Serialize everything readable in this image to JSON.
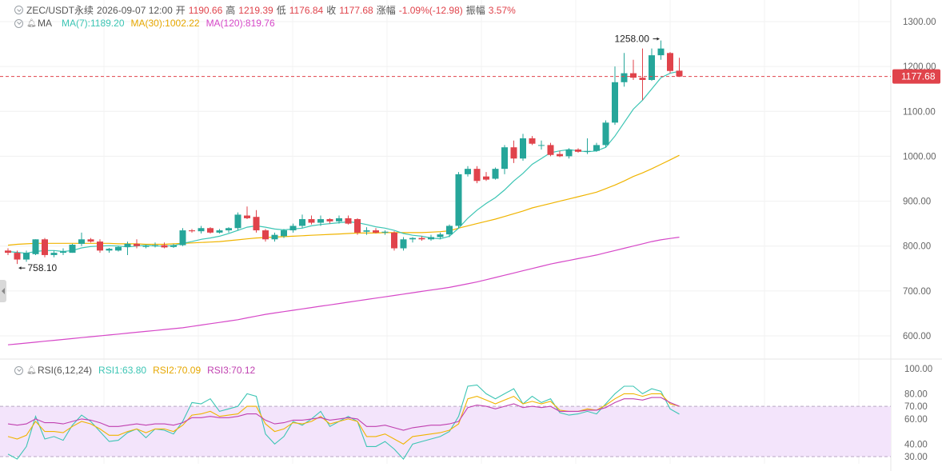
{
  "header": {
    "symbol": "ZEC/USDT永续",
    "datetime": "2026-09-07 12:00",
    "open_label": "开",
    "open": "1190.66",
    "high_label": "高",
    "high": "1219.39",
    "low_label": "低",
    "low": "1176.84",
    "close_label": "收",
    "close": "1177.68",
    "change_label": "涨幅",
    "change": "-1.09%(-12.98)",
    "amp_label": "振幅",
    "amp": "3.57%"
  },
  "ma_legend": {
    "title": "MA",
    "ma7": "MA(7):1189.20",
    "ma30": "MA(30):1002.22",
    "ma120": "MA(120):819.76"
  },
  "rsi_legend": {
    "title": "RSI(6,12,24)",
    "rsi1": "RSI1:63.80",
    "rsi2": "RSI2:70.09",
    "rsi3": "RSI3:70.12"
  },
  "price_axis": {
    "ticks": [
      "1300.00",
      "1200.00",
      "1100.00",
      "1000.00",
      "900.00",
      "800.00",
      "700.00",
      "600.00"
    ],
    "current_price": "1177.68",
    "high_marker": "1258.00",
    "low_marker": "758.10"
  },
  "rsi_axis": {
    "ticks": [
      "100.00",
      "80.00",
      "70.00",
      "60.00",
      "40.00",
      "30.00"
    ]
  },
  "colors": {
    "up": "#26a69a",
    "down": "#e0434b",
    "ma7": "#3cc5b4",
    "ma30": "#f0b400",
    "ma120": "#d648c8",
    "rsi1": "#3cc5b4",
    "rsi2": "#f0b400",
    "rsi3": "#c040b0",
    "rsi_band": "#f3e4fb"
  },
  "chart_data": [
    {
      "type": "candlestick",
      "price_ylim": [
        560,
        1320
      ],
      "candles": [
        {
          "o": 790,
          "h": 795,
          "l": 780,
          "c": 785
        },
        {
          "o": 785,
          "h": 790,
          "l": 760,
          "c": 770
        },
        {
          "o": 770,
          "h": 790,
          "l": 765,
          "c": 785
        },
        {
          "o": 782,
          "h": 815,
          "l": 780,
          "c": 815
        },
        {
          "o": 815,
          "h": 818,
          "l": 775,
          "c": 780
        },
        {
          "o": 780,
          "h": 790,
          "l": 775,
          "c": 785
        },
        {
          "o": 785,
          "h": 795,
          "l": 780,
          "c": 788
        },
        {
          "o": 785,
          "h": 805,
          "l": 785,
          "c": 803
        },
        {
          "o": 805,
          "h": 830,
          "l": 800,
          "c": 815
        },
        {
          "o": 815,
          "h": 818,
          "l": 808,
          "c": 810
        },
        {
          "o": 810,
          "h": 815,
          "l": 785,
          "c": 790
        },
        {
          "o": 790,
          "h": 796,
          "l": 785,
          "c": 794
        },
        {
          "o": 790,
          "h": 800,
          "l": 788,
          "c": 798
        },
        {
          "o": 798,
          "h": 810,
          "l": 780,
          "c": 805
        },
        {
          "o": 805,
          "h": 815,
          "l": 795,
          "c": 800
        },
        {
          "o": 798,
          "h": 803,
          "l": 795,
          "c": 800
        },
        {
          "o": 800,
          "h": 808,
          "l": 797,
          "c": 802
        },
        {
          "o": 802,
          "h": 808,
          "l": 795,
          "c": 797
        },
        {
          "o": 798,
          "h": 805,
          "l": 796,
          "c": 802
        },
        {
          "o": 802,
          "h": 840,
          "l": 800,
          "c": 835
        },
        {
          "o": 835,
          "h": 838,
          "l": 830,
          "c": 833
        },
        {
          "o": 833,
          "h": 845,
          "l": 828,
          "c": 840
        },
        {
          "o": 840,
          "h": 842,
          "l": 828,
          "c": 830
        },
        {
          "o": 830,
          "h": 838,
          "l": 828,
          "c": 835
        },
        {
          "o": 835,
          "h": 842,
          "l": 830,
          "c": 840
        },
        {
          "o": 840,
          "h": 875,
          "l": 835,
          "c": 870
        },
        {
          "o": 868,
          "h": 888,
          "l": 860,
          "c": 862
        },
        {
          "o": 865,
          "h": 880,
          "l": 830,
          "c": 835
        },
        {
          "o": 835,
          "h": 838,
          "l": 810,
          "c": 815
        },
        {
          "o": 815,
          "h": 830,
          "l": 810,
          "c": 825
        },
        {
          "o": 822,
          "h": 838,
          "l": 818,
          "c": 835
        },
        {
          "o": 835,
          "h": 850,
          "l": 830,
          "c": 845
        },
        {
          "o": 845,
          "h": 870,
          "l": 840,
          "c": 860
        },
        {
          "o": 860,
          "h": 868,
          "l": 848,
          "c": 852
        },
        {
          "o": 852,
          "h": 868,
          "l": 845,
          "c": 860
        },
        {
          "o": 860,
          "h": 862,
          "l": 850,
          "c": 855
        },
        {
          "o": 855,
          "h": 868,
          "l": 850,
          "c": 862
        },
        {
          "o": 862,
          "h": 868,
          "l": 848,
          "c": 850
        },
        {
          "o": 860,
          "h": 862,
          "l": 825,
          "c": 830
        },
        {
          "o": 832,
          "h": 842,
          "l": 825,
          "c": 835
        },
        {
          "o": 835,
          "h": 840,
          "l": 828,
          "c": 830
        },
        {
          "o": 830,
          "h": 835,
          "l": 825,
          "c": 832
        },
        {
          "o": 830,
          "h": 833,
          "l": 790,
          "c": 795
        },
        {
          "o": 795,
          "h": 820,
          "l": 790,
          "c": 815
        },
        {
          "o": 815,
          "h": 820,
          "l": 808,
          "c": 818
        },
        {
          "o": 818,
          "h": 822,
          "l": 812,
          "c": 815
        },
        {
          "o": 815,
          "h": 825,
          "l": 812,
          "c": 820
        },
        {
          "o": 820,
          "h": 830,
          "l": 815,
          "c": 826
        },
        {
          "o": 826,
          "h": 848,
          "l": 820,
          "c": 845
        },
        {
          "o": 845,
          "h": 965,
          "l": 840,
          "c": 960
        },
        {
          "o": 960,
          "h": 978,
          "l": 955,
          "c": 972
        },
        {
          "o": 972,
          "h": 978,
          "l": 940,
          "c": 945
        },
        {
          "o": 955,
          "h": 965,
          "l": 945,
          "c": 948
        },
        {
          "o": 950,
          "h": 975,
          "l": 948,
          "c": 972
        },
        {
          "o": 972,
          "h": 1025,
          "l": 960,
          "c": 1020
        },
        {
          "o": 1020,
          "h": 1035,
          "l": 985,
          "c": 995
        },
        {
          "o": 995,
          "h": 1050,
          "l": 990,
          "c": 1040
        },
        {
          "o": 1040,
          "h": 1045,
          "l": 1025,
          "c": 1028
        },
        {
          "o": 1025,
          "h": 1035,
          "l": 1015,
          "c": 1025
        },
        {
          "o": 1025,
          "h": 1030,
          "l": 1000,
          "c": 1003
        },
        {
          "o": 1005,
          "h": 1012,
          "l": 998,
          "c": 1000
        },
        {
          "o": 1000,
          "h": 1018,
          "l": 995,
          "c": 1015
        },
        {
          "o": 1015,
          "h": 1018,
          "l": 1008,
          "c": 1010
        },
        {
          "o": 1010,
          "h": 1040,
          "l": 1005,
          "c": 1012
        },
        {
          "o": 1012,
          "h": 1030,
          "l": 1010,
          "c": 1025
        },
        {
          "o": 1025,
          "h": 1080,
          "l": 1020,
          "c": 1075
        },
        {
          "o": 1075,
          "h": 1200,
          "l": 1070,
          "c": 1165
        },
        {
          "o": 1165,
          "h": 1230,
          "l": 1155,
          "c": 1185
        },
        {
          "o": 1185,
          "h": 1215,
          "l": 1170,
          "c": 1175
        },
        {
          "o": 1175,
          "h": 1240,
          "l": 1125,
          "c": 1170
        },
        {
          "o": 1170,
          "h": 1240,
          "l": 1168,
          "c": 1225
        },
        {
          "o": 1225,
          "h": 1258,
          "l": 1215,
          "c": 1240
        },
        {
          "o": 1230,
          "h": 1232,
          "l": 1185,
          "c": 1190
        },
        {
          "o": 1190.66,
          "h": 1219.39,
          "l": 1176.84,
          "c": 1177.68
        }
      ],
      "ma7": [
        788,
        786,
        784,
        788,
        790,
        790,
        788,
        790,
        796,
        799,
        800,
        801,
        800,
        798,
        800,
        802,
        800,
        800,
        801,
        806,
        810,
        815,
        818,
        822,
        828,
        835,
        842,
        845,
        842,
        838,
        836,
        838,
        840,
        845,
        848,
        850,
        852,
        854,
        852,
        848,
        843,
        840,
        835,
        828,
        824,
        822,
        818,
        816,
        822,
        840,
        862,
        880,
        895,
        908,
        925,
        945,
        962,
        982,
        995,
        1008,
        1012,
        1015,
        1012,
        1010,
        1012,
        1020,
        1045,
        1075,
        1105,
        1125,
        1150,
        1175,
        1185,
        1189.2
      ],
      "ma30": [
        802,
        804,
        805,
        806,
        806,
        806,
        806,
        806,
        806,
        806,
        806,
        806,
        805,
        805,
        805,
        804,
        804,
        804,
        805,
        806,
        807,
        808,
        809,
        810,
        812,
        814,
        816,
        818,
        819,
        820,
        821,
        822,
        823,
        824,
        825,
        826,
        827,
        828,
        829,
        829,
        829,
        830,
        830,
        830,
        830,
        830,
        831,
        832,
        834,
        840,
        845,
        850,
        855,
        860,
        866,
        872,
        878,
        885,
        890,
        895,
        900,
        905,
        910,
        915,
        920,
        928,
        936,
        945,
        955,
        963,
        972,
        982,
        992,
        1002.22
      ],
      "ma120": [
        580,
        582,
        584,
        586,
        588,
        590,
        592,
        594,
        596,
        598,
        600,
        602,
        604,
        606,
        608,
        610,
        612,
        614,
        616,
        618,
        621,
        624,
        627,
        630,
        633,
        636,
        640,
        644,
        648,
        651,
        654,
        657,
        660,
        663,
        666,
        669,
        672,
        675,
        678,
        681,
        684,
        687,
        690,
        693,
        696,
        699,
        702,
        705,
        708,
        712,
        716,
        720,
        725,
        730,
        735,
        740,
        745,
        750,
        755,
        760,
        764,
        768,
        772,
        776,
        780,
        785,
        790,
        795,
        800,
        805,
        810,
        814,
        817,
        819.76
      ]
    },
    {
      "type": "line",
      "title": "RSI(6,12,24)",
      "ylim": [
        30,
        100
      ],
      "band": [
        30,
        70
      ],
      "series": [
        {
          "name": "RSI1",
          "values": [
            32,
            28,
            38,
            62,
            44,
            46,
            43,
            55,
            63,
            58,
            50,
            42,
            43,
            49,
            52,
            45,
            52,
            51,
            48,
            58,
            73,
            72,
            76,
            66,
            68,
            70,
            80,
            78,
            48,
            40,
            46,
            58,
            55,
            60,
            66,
            54,
            58,
            62,
            58,
            38,
            38,
            42,
            36,
            28,
            40,
            42,
            44,
            46,
            50,
            62,
            86,
            87,
            80,
            76,
            80,
            84,
            72,
            78,
            73,
            76,
            65,
            63,
            64,
            66,
            64,
            72,
            80,
            86,
            86,
            80,
            84,
            82,
            68,
            63.8
          ]
        },
        {
          "name": "RSI2",
          "values": [
            46,
            44,
            47,
            58,
            50,
            50,
            49,
            54,
            58,
            56,
            52,
            47,
            47,
            50,
            52,
            49,
            52,
            52,
            50,
            55,
            63,
            64,
            66,
            62,
            63,
            64,
            70,
            70,
            56,
            50,
            52,
            57,
            56,
            58,
            62,
            56,
            58,
            60,
            58,
            46,
            46,
            48,
            44,
            40,
            46,
            47,
            48,
            49,
            51,
            56,
            76,
            78,
            75,
            72,
            75,
            78,
            72,
            74,
            72,
            74,
            67,
            66,
            66,
            68,
            67,
            71,
            76,
            80,
            80,
            78,
            80,
            80,
            72,
            70.09
          ]
        },
        {
          "name": "RSI3",
          "values": [
            56,
            55,
            56,
            60,
            57,
            57,
            56,
            58,
            60,
            59,
            57,
            54,
            54,
            55,
            56,
            55,
            56,
            56,
            55,
            57,
            61,
            61,
            62,
            61,
            61,
            62,
            64,
            64,
            59,
            56,
            57,
            59,
            59,
            60,
            61,
            59,
            60,
            61,
            60,
            54,
            54,
            55,
            53,
            51,
            53,
            54,
            55,
            55,
            56,
            58,
            69,
            71,
            70,
            68,
            70,
            72,
            69,
            70,
            69,
            70,
            66,
            66,
            66,
            67,
            67,
            69,
            73,
            76,
            76,
            75,
            77,
            77,
            73,
            70.12
          ]
        }
      ]
    }
  ]
}
